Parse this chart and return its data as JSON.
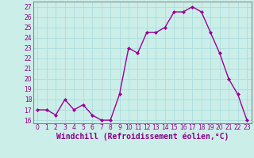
{
  "x": [
    0,
    1,
    2,
    3,
    4,
    5,
    6,
    7,
    8,
    9,
    10,
    11,
    12,
    13,
    14,
    15,
    16,
    17,
    18,
    19,
    20,
    21,
    22,
    23
  ],
  "y": [
    17.0,
    17.0,
    16.5,
    18.0,
    17.0,
    17.5,
    16.5,
    16.0,
    16.0,
    18.5,
    23.0,
    22.5,
    24.5,
    24.5,
    25.0,
    26.5,
    26.5,
    27.0,
    26.5,
    24.5,
    22.5,
    20.0,
    18.5,
    16.0
  ],
  "line_color": "#990099",
  "marker": "D",
  "marker_size": 2.0,
  "linewidth": 1.0,
  "bg_color": "#cceee8",
  "grid_color": "#aadddd",
  "xlabel": "Windchill (Refroidissement éolien,°C)",
  "yticks": [
    16,
    17,
    18,
    19,
    20,
    21,
    22,
    23,
    24,
    25,
    26,
    27
  ],
  "xticks": [
    0,
    1,
    2,
    3,
    4,
    5,
    6,
    7,
    8,
    9,
    10,
    11,
    12,
    13,
    14,
    15,
    16,
    17,
    18,
    19,
    20,
    21,
    22,
    23
  ],
  "ylim": [
    15.7,
    27.5
  ],
  "xlim": [
    -0.5,
    23.5
  ],
  "xlabel_fontsize": 7.0,
  "tick_fontsize": 5.5,
  "tick_color": "#880088",
  "axis_color": "#888888"
}
